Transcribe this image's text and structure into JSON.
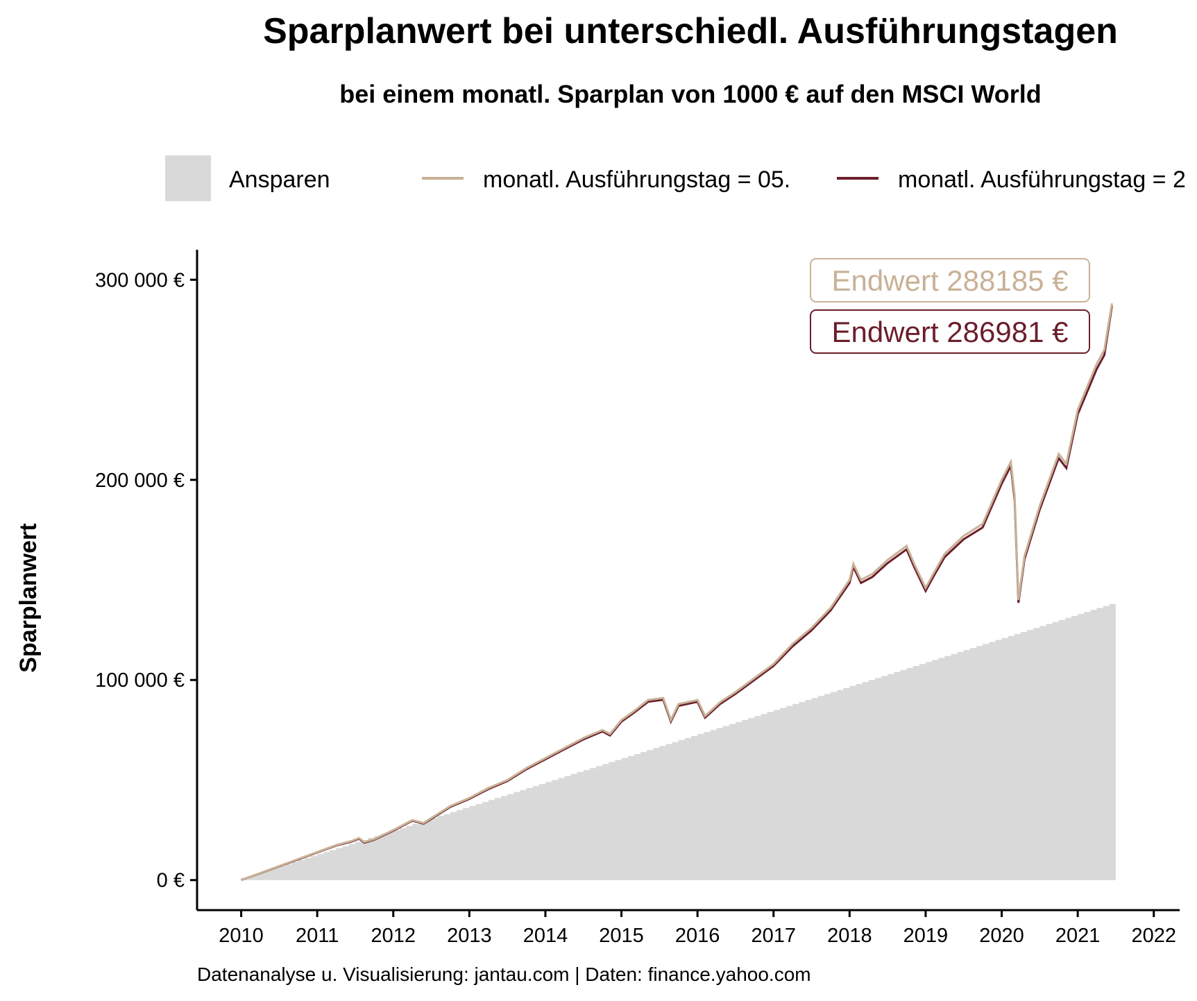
{
  "chart_data": {
    "type": "area",
    "title": "Sparplanwert bei unterschiedl. Ausführungstagen",
    "subtitle": "bei einem monatl. Sparplan von 1000 € auf den MSCI World",
    "ylabel": "Sparplanwert",
    "xlabel": "",
    "caption": "Datenanalyse u. Visualisierung: jantau.com | Daten: finance.yahoo.com",
    "xlim": [
      2009.42,
      2022.34
    ],
    "ylim": [
      -15000,
      315000
    ],
    "x_ticks": [
      2010,
      2011,
      2012,
      2013,
      2014,
      2015,
      2016,
      2017,
      2018,
      2019,
      2020,
      2021,
      2022
    ],
    "x_tick_labels": [
      "2010",
      "2011",
      "2012",
      "2013",
      "2014",
      "2015",
      "2016",
      "2017",
      "2018",
      "2019",
      "2020",
      "2021",
      "2022"
    ],
    "y_ticks": [
      0,
      100000,
      200000,
      300000
    ],
    "y_tick_labels": [
      "0 €",
      "100 000 €",
      "200 000 €",
      "300 000 €"
    ],
    "grid": false,
    "legend_position": "top",
    "legend": [
      {
        "label": "Ansparen",
        "kind": "area",
        "color": "#d9d9d9"
      },
      {
        "label": "monatl. Ausführungstag = 05.",
        "kind": "line",
        "color": "#c8b196"
      },
      {
        "label": "monatl. Ausführungstag = 2",
        "kind": "line",
        "color": "#6b1e2a"
      }
    ],
    "ansparen": {
      "name": "Ansparen",
      "color": "#d9d9d9",
      "start": 2010.0,
      "end": 2021.5,
      "step_per_month": 1000
    },
    "series": [
      {
        "name": "monatl. Ausführungstag = 05.",
        "color": "#c8b196",
        "end_value_label": "Endwert 288185 €",
        "points": [
          [
            2010.0,
            0
          ],
          [
            2010.25,
            3500
          ],
          [
            2010.5,
            7000
          ],
          [
            2010.75,
            10500
          ],
          [
            2011.0,
            14000
          ],
          [
            2011.25,
            17500
          ],
          [
            2011.45,
            19500
          ],
          [
            2011.55,
            21000
          ],
          [
            2011.62,
            19000
          ],
          [
            2011.75,
            20500
          ],
          [
            2012.0,
            25000
          ],
          [
            2012.25,
            30000
          ],
          [
            2012.4,
            28500
          ],
          [
            2012.5,
            31000
          ],
          [
            2012.75,
            37000
          ],
          [
            2013.0,
            41000
          ],
          [
            2013.25,
            46000
          ],
          [
            2013.5,
            50000
          ],
          [
            2013.75,
            56000
          ],
          [
            2014.0,
            61000
          ],
          [
            2014.25,
            66000
          ],
          [
            2014.5,
            71000
          ],
          [
            2014.75,
            75000
          ],
          [
            2014.85,
            73000
          ],
          [
            2015.0,
            80000
          ],
          [
            2015.15,
            84000
          ],
          [
            2015.35,
            90000
          ],
          [
            2015.55,
            91000
          ],
          [
            2015.65,
            80000
          ],
          [
            2015.75,
            88000
          ],
          [
            2016.0,
            90000
          ],
          [
            2016.1,
            82000
          ],
          [
            2016.3,
            89000
          ],
          [
            2016.5,
            94000
          ],
          [
            2016.75,
            101000
          ],
          [
            2017.0,
            108000
          ],
          [
            2017.25,
            118000
          ],
          [
            2017.5,
            126000
          ],
          [
            2017.75,
            136000
          ],
          [
            2018.0,
            150000
          ],
          [
            2018.05,
            158000
          ],
          [
            2018.15,
            150000
          ],
          [
            2018.3,
            153000
          ],
          [
            2018.5,
            160000
          ],
          [
            2018.75,
            167000
          ],
          [
            2018.85,
            158000
          ],
          [
            2019.0,
            146000
          ],
          [
            2019.1,
            153000
          ],
          [
            2019.25,
            163000
          ],
          [
            2019.5,
            172000
          ],
          [
            2019.75,
            178000
          ],
          [
            2020.0,
            200000
          ],
          [
            2020.12,
            209000
          ],
          [
            2020.17,
            192000
          ],
          [
            2020.22,
            140000
          ],
          [
            2020.3,
            162000
          ],
          [
            2020.5,
            187000
          ],
          [
            2020.75,
            213000
          ],
          [
            2020.85,
            208000
          ],
          [
            2021.0,
            235000
          ],
          [
            2021.25,
            258000
          ],
          [
            2021.35,
            265000
          ],
          [
            2021.45,
            288185
          ]
        ]
      },
      {
        "name": "monatl. Ausführungstag = 2",
        "color": "#6b1e2a",
        "end_value_label": "Endwert 286981 €",
        "points": [
          [
            2010.0,
            0
          ],
          [
            2010.25,
            3400
          ],
          [
            2010.5,
            6900
          ],
          [
            2010.75,
            10300
          ],
          [
            2011.0,
            13800
          ],
          [
            2011.25,
            17300
          ],
          [
            2011.45,
            19200
          ],
          [
            2011.55,
            20700
          ],
          [
            2011.62,
            18700
          ],
          [
            2011.75,
            20200
          ],
          [
            2012.0,
            24700
          ],
          [
            2012.25,
            29700
          ],
          [
            2012.4,
            28200
          ],
          [
            2012.5,
            30600
          ],
          [
            2012.75,
            36600
          ],
          [
            2013.0,
            40600
          ],
          [
            2013.25,
            45500
          ],
          [
            2013.5,
            49500
          ],
          [
            2013.75,
            55400
          ],
          [
            2014.0,
            60400
          ],
          [
            2014.25,
            65400
          ],
          [
            2014.5,
            70300
          ],
          [
            2014.75,
            74300
          ],
          [
            2014.85,
            72300
          ],
          [
            2015.0,
            79200
          ],
          [
            2015.15,
            83200
          ],
          [
            2015.35,
            89100
          ],
          [
            2015.55,
            90100
          ],
          [
            2015.65,
            79200
          ],
          [
            2015.75,
            87100
          ],
          [
            2016.0,
            89100
          ],
          [
            2016.1,
            81200
          ],
          [
            2016.3,
            88100
          ],
          [
            2016.5,
            93100
          ],
          [
            2016.75,
            100000
          ],
          [
            2017.0,
            107000
          ],
          [
            2017.25,
            116800
          ],
          [
            2017.5,
            124800
          ],
          [
            2017.75,
            134700
          ],
          [
            2018.0,
            148500
          ],
          [
            2018.05,
            156500
          ],
          [
            2018.15,
            148500
          ],
          [
            2018.3,
            151500
          ],
          [
            2018.5,
            158400
          ],
          [
            2018.75,
            165300
          ],
          [
            2018.85,
            156400
          ],
          [
            2019.0,
            144500
          ],
          [
            2019.1,
            151500
          ],
          [
            2019.25,
            161400
          ],
          [
            2019.5,
            170300
          ],
          [
            2019.75,
            176200
          ],
          [
            2020.0,
            198000
          ],
          [
            2020.12,
            207000
          ],
          [
            2020.17,
            190000
          ],
          [
            2020.22,
            138600
          ],
          [
            2020.3,
            160400
          ],
          [
            2020.5,
            185100
          ],
          [
            2020.75,
            210900
          ],
          [
            2020.85,
            205900
          ],
          [
            2021.0,
            232700
          ],
          [
            2021.25,
            255400
          ],
          [
            2021.35,
            262400
          ],
          [
            2021.45,
            286981
          ]
        ]
      }
    ]
  }
}
